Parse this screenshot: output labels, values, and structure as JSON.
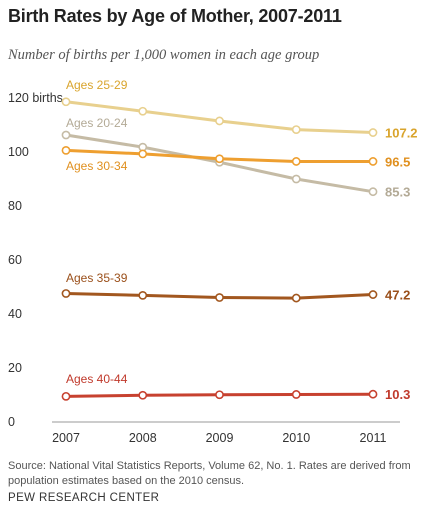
{
  "header": {
    "title": "Birth Rates by Age of Mother, 2007-2011",
    "subtitle": "Number of births per 1,000 women in each age group"
  },
  "footer": {
    "source": "Source: National Vital Statistics Reports, Volume 62, No. 1. Rates are derived from population estimates based on the 2010 census.",
    "brand": "PEW RESEARCH CENTER"
  },
  "chart_data": {
    "type": "line",
    "title": "Birth Rates by Age of Mother, 2007-2011",
    "subtitle": "Number of births per 1,000 women in each age group",
    "x": [
      2007,
      2008,
      2009,
      2010,
      2011
    ],
    "ylim": [
      0,
      120
    ],
    "yticks": [
      0,
      20,
      40,
      60,
      80,
      100,
      120
    ],
    "ytick_labels": [
      "0",
      "20",
      "40",
      "60",
      "80",
      "100",
      "120 births"
    ],
    "grid": false,
    "series": [
      {
        "name": "Ages 25-29",
        "values": [
          118.6,
          115.1,
          111.5,
          108.3,
          107.2
        ],
        "end_label": "107.2",
        "color": "#e8d08e"
      },
      {
        "name": "Ages 20-24",
        "values": [
          106.3,
          101.8,
          96.2,
          90.0,
          85.3
        ],
        "end_label": "85.3",
        "color": "#c5bba5"
      },
      {
        "name": "Ages 30-34",
        "values": [
          100.6,
          99.3,
          97.5,
          96.5,
          96.5
        ],
        "end_label": "96.5",
        "color": "#ee9f30"
      },
      {
        "name": "Ages 35-39",
        "values": [
          47.6,
          46.9,
          46.1,
          45.9,
          47.2
        ],
        "end_label": "47.2",
        "color": "#a2571f"
      },
      {
        "name": "Ages 40-44",
        "values": [
          9.5,
          9.9,
          10.1,
          10.2,
          10.3
        ],
        "end_label": "10.3",
        "color": "#c7412f"
      }
    ],
    "label_colors": {
      "Ages 25-29": "#d9a42c",
      "Ages 20-24": "#b3aa96",
      "Ages 30-34": "#e0901f",
      "Ages 35-39": "#9a4f1a",
      "Ages 40-44": "#c0392b"
    }
  }
}
